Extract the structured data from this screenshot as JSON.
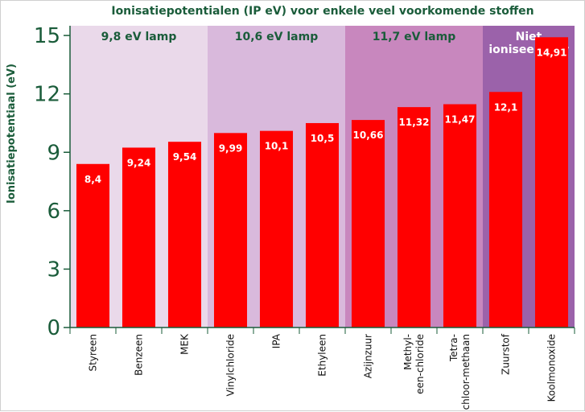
{
  "chart_data": {
    "type": "bar",
    "title": "Ionisatiepotentialen (IP eV) voor enkele veel voorkomende stoffen",
    "ylabel": "Ionisatiepotentiaal (eV)",
    "xlabel": "",
    "ylim": [
      0,
      15.5
    ],
    "yticks": [
      0,
      3,
      6,
      9,
      12,
      15
    ],
    "categories": [
      [
        "Styreen"
      ],
      [
        "Benzeen"
      ],
      [
        "MEK"
      ],
      [
        "Vinylchloride"
      ],
      [
        "IPA"
      ],
      [
        "Ethyleen"
      ],
      [
        "Azijnzuur"
      ],
      [
        "Methyl-",
        "een-chloride"
      ],
      [
        "Tetra-",
        "chloor-methaan"
      ],
      [
        "Zuurstof"
      ],
      [
        "Koolmonoxide"
      ]
    ],
    "values": [
      8.4,
      9.24,
      9.54,
      9.99,
      10.1,
      10.5,
      10.66,
      11.32,
      11.47,
      12.1,
      14.91
    ],
    "value_labels": [
      "8,4",
      "9,24",
      "9,54",
      "9,99",
      "10,1",
      "10,5",
      "10,66",
      "11,32",
      "11,47",
      "12,1",
      "14,91"
    ],
    "bands": [
      {
        "label": [
          "9,8 eV lamp"
        ],
        "from": 0,
        "to": 2,
        "color": "#ead9ea",
        "text_color": "#1a5c3a"
      },
      {
        "label": [
          "10,6 eV lamp"
        ],
        "from": 3,
        "to": 5,
        "color": "#d9b9dc",
        "text_color": "#1a5c3a"
      },
      {
        "label": [
          "11,7 eV lamp"
        ],
        "from": 6,
        "to": 8,
        "color": "#c887be",
        "text_color": "#1a5c3a"
      },
      {
        "label": [
          "Niet",
          "ioniseerbaar"
        ],
        "from": 9,
        "to": 10,
        "color": "#9b62aa",
        "text_color": "#ffffff"
      }
    ],
    "bar_color": "#ff0000",
    "axis_color": "#1a5c3a",
    "grid": false
  }
}
